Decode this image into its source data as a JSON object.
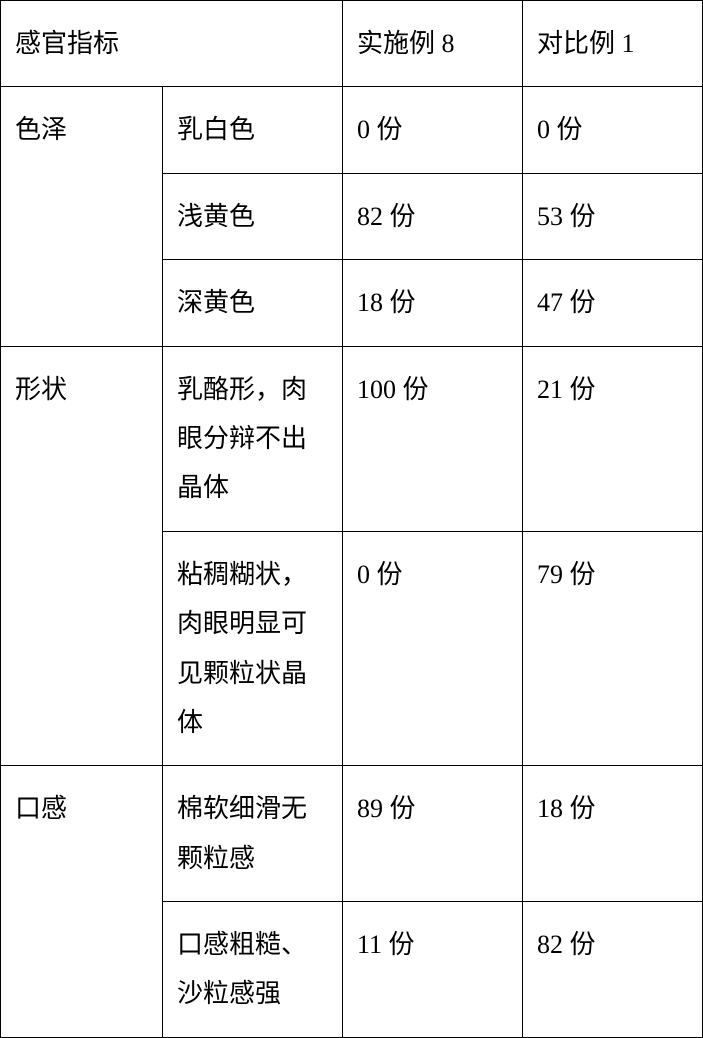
{
  "table": {
    "headers": {
      "sensory_index": "感官指标",
      "example_8": "实施例 8",
      "compare_1": "对比例 1"
    },
    "categories": {
      "color": {
        "label": "色泽",
        "rows": [
          {
            "criteria": "乳白色",
            "example_8": "0 份",
            "compare_1": "0 份"
          },
          {
            "criteria": "浅黄色",
            "example_8": "82 份",
            "compare_1": "53 份"
          },
          {
            "criteria": "深黄色",
            "example_8": "18 份",
            "compare_1": "47 份"
          }
        ]
      },
      "shape": {
        "label": "形状",
        "rows": [
          {
            "criteria": "乳酪形，肉眼分辩不出晶体",
            "example_8": "100 份",
            "compare_1": "21 份"
          },
          {
            "criteria": "粘稠糊状，肉眼明显可见颗粒状晶体",
            "example_8": "0 份",
            "compare_1": "79 份"
          }
        ]
      },
      "taste": {
        "label": "口感",
        "rows": [
          {
            "criteria": "棉软细滑无颗粒感",
            "example_8": "89 份",
            "compare_1": "18 份"
          },
          {
            "criteria": "口感粗糙、沙粒感强",
            "example_8": "11 份",
            "compare_1": "82 份"
          }
        ]
      }
    },
    "colors": {
      "border": "#000000",
      "background": "#ffffff",
      "text": "#000000"
    },
    "font_size": 26,
    "line_height": 1.9
  }
}
